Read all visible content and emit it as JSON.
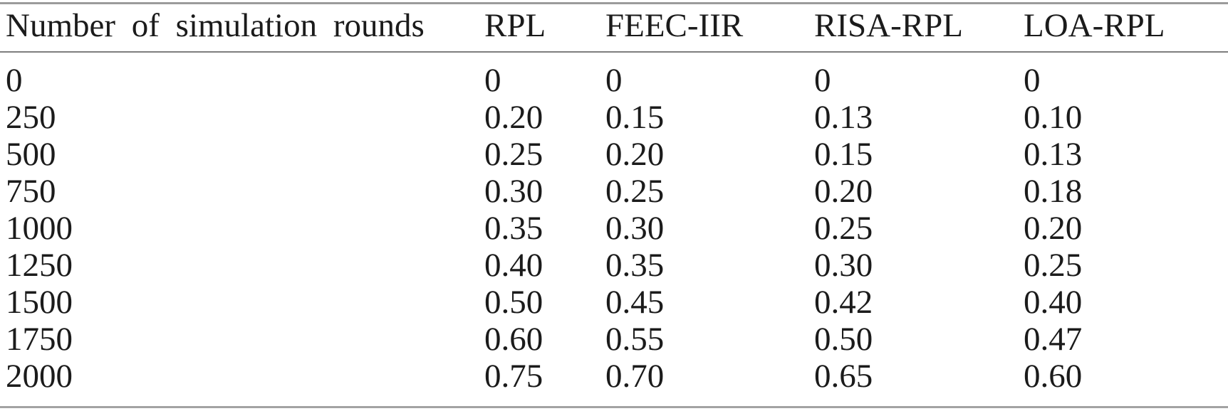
{
  "table": {
    "columns": [
      "Number of simulation rounds",
      "RPL",
      "FEEC-IIR",
      "RISA-RPL",
      "LOA-RPL"
    ],
    "rows": [
      [
        "0",
        "0",
        "0",
        "0",
        "0"
      ],
      [
        "250",
        "0.20",
        "0.15",
        "0.13",
        "0.10"
      ],
      [
        "500",
        "0.25",
        "0.20",
        "0.15",
        "0.13"
      ],
      [
        "750",
        "0.30",
        "0.25",
        "0.20",
        "0.18"
      ],
      [
        "1000",
        "0.35",
        "0.30",
        "0.25",
        "0.20"
      ],
      [
        "1250",
        "0.40",
        "0.35",
        "0.30",
        "0.25"
      ],
      [
        "1500",
        "0.50",
        "0.45",
        "0.42",
        "0.40"
      ],
      [
        "1750",
        "0.60",
        "0.55",
        "0.50",
        "0.47"
      ],
      [
        "2000",
        "0.75",
        "0.70",
        "0.65",
        "0.60"
      ]
    ]
  },
  "chart_data": {
    "type": "table",
    "categories": [
      0,
      250,
      500,
      750,
      1000,
      1250,
      1500,
      1750,
      2000
    ],
    "xlabel": "Number of simulation rounds",
    "series": [
      {
        "name": "RPL",
        "values": [
          0,
          0.2,
          0.25,
          0.3,
          0.35,
          0.4,
          0.5,
          0.6,
          0.75
        ]
      },
      {
        "name": "FEEC-IIR",
        "values": [
          0,
          0.15,
          0.2,
          0.25,
          0.3,
          0.35,
          0.45,
          0.55,
          0.7
        ]
      },
      {
        "name": "RISA-RPL",
        "values": [
          0,
          0.13,
          0.15,
          0.2,
          0.25,
          0.3,
          0.42,
          0.5,
          0.65
        ]
      },
      {
        "name": "LOA-RPL",
        "values": [
          0,
          0.1,
          0.13,
          0.18,
          0.2,
          0.25,
          0.4,
          0.47,
          0.6
        ]
      }
    ]
  },
  "colors": {
    "text": "#1b1b1b",
    "rule": "#9b9b9b",
    "background": "#ffffff"
  }
}
